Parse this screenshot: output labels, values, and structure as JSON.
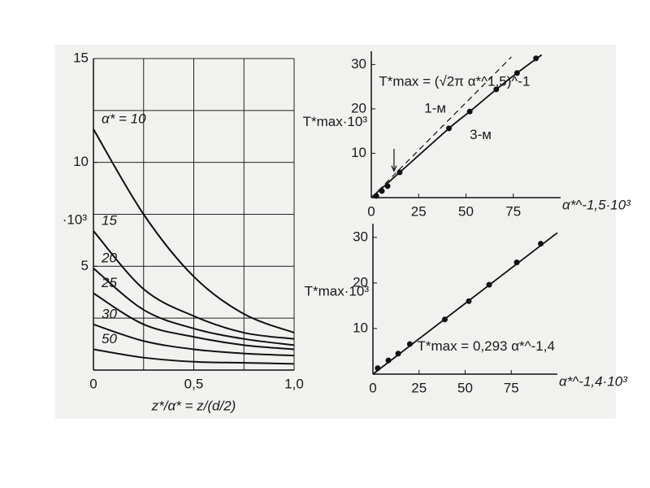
{
  "chart_data": [
    {
      "type": "line",
      "xlabel": "z*/α* = z/(d/2)",
      "ylabel": "·10³",
      "xlim": [
        0,
        1
      ],
      "ylim": [
        0,
        15
      ],
      "xticks": [
        0,
        {
          "value": 0.5,
          "label": "0,5"
        },
        {
          "value": 1,
          "label": "1,0"
        }
      ],
      "yticks": [
        5,
        10,
        15
      ],
      "xgrid": [
        0.25,
        0.5,
        0.75,
        1
      ],
      "ygrid": [
        2.5,
        5,
        7.5,
        10,
        12.5,
        15
      ],
      "x": [
        0,
        0.25,
        0.5,
        0.75,
        1
      ],
      "series": [
        {
          "name": "α* = 10",
          "color": "#111111",
          "values": [
            11.6,
            7.5,
            4.5,
            2.7,
            1.8
          ]
        },
        {
          "name": "15",
          "color": "#111111",
          "values": [
            6.7,
            3.9,
            2.6,
            1.8,
            1.5
          ]
        },
        {
          "name": "20",
          "color": "#111111",
          "values": [
            4.9,
            2.9,
            2.0,
            1.5,
            1.2
          ]
        },
        {
          "name": "25",
          "color": "#111111",
          "values": [
            3.7,
            2.2,
            1.6,
            1.2,
            1.0
          ]
        },
        {
          "name": "30",
          "color": "#111111",
          "values": [
            2.2,
            1.4,
            1.0,
            0.8,
            0.7
          ]
        },
        {
          "name": "50",
          "color": "#111111",
          "values": [
            1.0,
            0.6,
            0.4,
            0.35,
            0.3
          ]
        }
      ]
    },
    {
      "type": "scatter",
      "xlabel": "α*^-1,5·10³",
      "ylabel": "T*max·10³",
      "annotation": "T*max = (√2π α*^1,5)^-1",
      "xlim": [
        0,
        100
      ],
      "ylim": [
        0,
        33
      ],
      "xticks": [
        0,
        25,
        50,
        75
      ],
      "yticks": [
        10,
        20,
        30
      ],
      "color": "#111111",
      "x": [
        2.6,
        5.6,
        8.6,
        15,
        41,
        52,
        66,
        77,
        87
      ],
      "values": [
        0.4,
        1.5,
        2.6,
        5.7,
        15.6,
        19.4,
        24.4,
        28.1,
        31.4
      ],
      "lines": [
        {
          "name": "1-м",
          "dashed": true,
          "x": [
            0,
            74
          ],
          "values": [
            0,
            31.7
          ]
        },
        {
          "name": "3-м",
          "dashed": false,
          "x": [
            0,
            15,
            41,
            52,
            66,
            77,
            90
          ],
          "values": [
            0,
            5.7,
            15.6,
            19.4,
            24.4,
            28.1,
            32.2
          ]
        }
      ]
    },
    {
      "type": "scatter",
      "xlabel": "α*^-1,4·10³",
      "ylabel": "T*max·10³",
      "annotation": "T*max = 0,293 α*^-1,4",
      "xlim": [
        0,
        100
      ],
      "ylim": [
        0,
        33
      ],
      "xticks": [
        0,
        25,
        50,
        75
      ],
      "yticks": [
        10,
        20,
        30
      ],
      "color": "#111111",
      "x": [
        2.6,
        8.4,
        13.7,
        20,
        39,
        52,
        63,
        78,
        91
      ],
      "values": [
        1.3,
        3.0,
        4.5,
        6.6,
        12.0,
        16,
        19.6,
        24.5,
        28.6
      ],
      "lines": [
        {
          "dashed": false,
          "x": [
            0,
            100
          ],
          "values": [
            0,
            31
          ]
        }
      ]
    }
  ]
}
